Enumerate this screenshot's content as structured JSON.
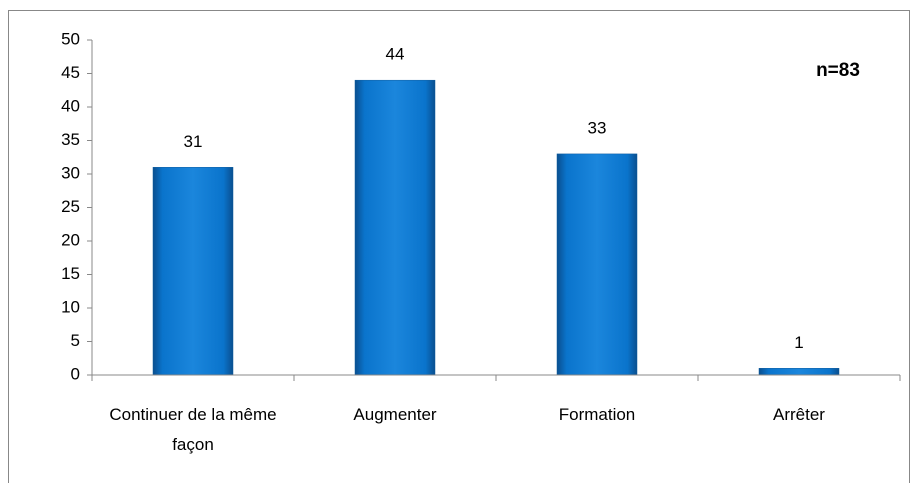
{
  "chart_data": {
    "type": "bar",
    "annotation": "n=83",
    "categories": [
      "Continuer de la même façon",
      "Augmenter",
      "Formation",
      "Arrêter"
    ],
    "values": [
      31,
      44,
      33,
      1
    ],
    "color": "#0070c0",
    "ylim": [
      0,
      50
    ],
    "yticks": [
      0,
      5,
      10,
      15,
      20,
      25,
      30,
      35,
      40,
      45,
      50
    ],
    "grid": false
  }
}
